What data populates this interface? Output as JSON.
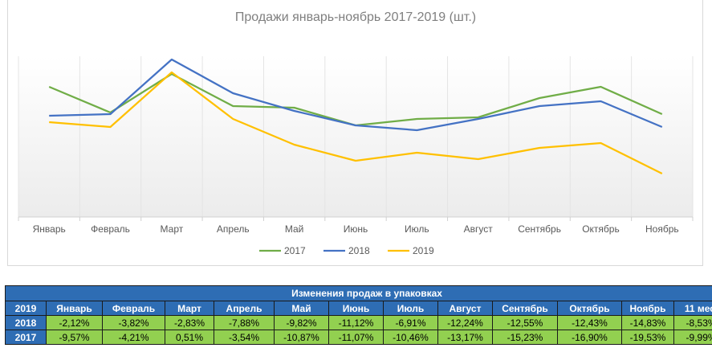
{
  "chart_data": {
    "type": "line",
    "title": "Продажи январь-ноябрь 2017-2019 (шт.)",
    "categories": [
      "Январь",
      "Февраль",
      "Март",
      "Апрель",
      "Май",
      "Июнь",
      "Июль",
      "Август",
      "Сентябрь",
      "Октябрь",
      "Ноябрь"
    ],
    "ylim": [
      0,
      100
    ],
    "grid": false,
    "legend_position": "bottom",
    "series": [
      {
        "name": "2017",
        "color": "#70ad47",
        "values": [
          81,
          65,
          89,
          69,
          68,
          57,
          61,
          62,
          74,
          81,
          64
        ]
      },
      {
        "name": "2018",
        "color": "#4472c4",
        "values": [
          63,
          64,
          98,
          77,
          66,
          57,
          54,
          61,
          69,
          72,
          56
        ]
      },
      {
        "name": "2019",
        "color": "#ffc000",
        "values": [
          59,
          56,
          90,
          61,
          45,
          35,
          40,
          36,
          43,
          46,
          27
        ]
      }
    ]
  },
  "table": {
    "title": "Изменения продаж в упаковках",
    "header": [
      "2019",
      "Январь",
      "Февраль",
      "Март",
      "Апрель",
      "Май",
      "Июнь",
      "Июль",
      "Август",
      "Сентябрь",
      "Октябрь",
      "Ноябрь",
      "11 мес."
    ],
    "rows": [
      {
        "label": "2018",
        "values": [
          "-2,12%",
          "-3,82%",
          "-2,83%",
          "-7,88%",
          "-9,82%",
          "-11,12%",
          "-6,91%",
          "-12,24%",
          "-12,55%",
          "-12,43%",
          "-14,83%",
          "-8,53%"
        ]
      },
      {
        "label": "2017",
        "values": [
          "-9,57%",
          "-4,21%",
          "0,51%",
          "-3,54%",
          "-10,87%",
          "-11,07%",
          "-10,46%",
          "-13,17%",
          "-15,23%",
          "-16,90%",
          "-19,53%",
          "-9,99%"
        ]
      }
    ]
  }
}
